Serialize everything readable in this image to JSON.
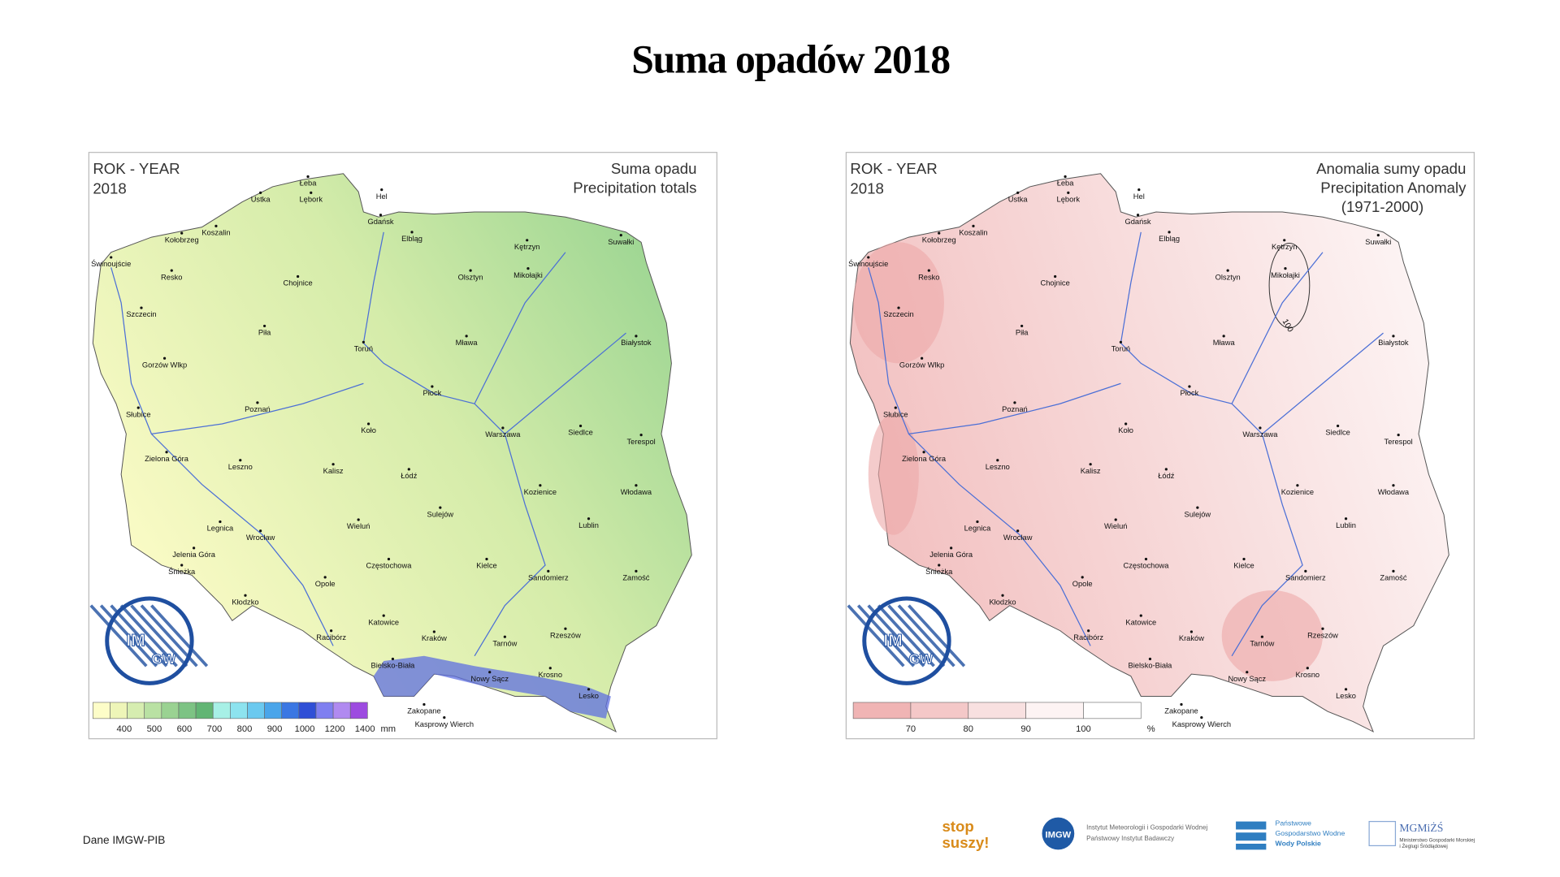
{
  "title": "Suma opadów 2018",
  "maps": [
    {
      "header_left": [
        "ROK - YEAR",
        "2018"
      ],
      "header_right": [
        "Suma opadu",
        "Precipitation totals"
      ],
      "fill": [
        "#8fd08d",
        "#d5ecaa",
        "#fbfbc6"
      ],
      "legend": {
        "colors": [
          "#fdfdc8",
          "#eef5b8",
          "#d6edb0",
          "#b9e1a3",
          "#9ad292",
          "#7dc384",
          "#62b574",
          "#a7f0e6",
          "#8de3ef",
          "#6bc9ef",
          "#4aa5ea",
          "#3a77e3",
          "#2f4fd6",
          "#7f7ff0",
          "#b08af0",
          "#9d4be0"
        ],
        "labels": [
          "400",
          "500",
          "600",
          "700",
          "800",
          "900",
          "1000",
          "1200",
          "1400"
        ],
        "unit": "mm"
      }
    },
    {
      "header_left": [
        "ROK - YEAR",
        "2018"
      ],
      "header_right": [
        "Anomalia sumy opadu",
        "Precipitation Anomaly",
        "(1971-2000)"
      ],
      "fill": [
        "#f2c0c0",
        "#f8dede",
        "#fdf6f6"
      ],
      "contour_label": "100",
      "legend": {
        "colors": [
          "#f0b4b4",
          "#f4c8c8",
          "#f8e0e0",
          "#fdf3f3",
          "#ffffff"
        ],
        "labels": [
          "70",
          "80",
          "90",
          "100"
        ],
        "unit": "%"
      }
    }
  ],
  "logo_text": [
    "IM",
    "GW"
  ],
  "cities": [
    "Hel",
    "Łeba",
    "Lębork",
    "Ustka",
    "Gdańsk",
    "Elbląg",
    "Kołobrzeg",
    "Koszalin",
    "Świnoujście",
    "Resko",
    "Chojnice",
    "Kętrzyn",
    "Suwałki",
    "Olsztyn",
    "Mikołajki",
    "Szczecin",
    "Piła",
    "Toruń",
    "Mława",
    "Białystok",
    "Gorzów Wlkp",
    "Płock",
    "Poznań",
    "Słubice",
    "Koło",
    "Warszawa",
    "Siedlce",
    "Terespol",
    "Zielona Góra",
    "Leszno",
    "Kalisz",
    "Łódź",
    "Kozienice",
    "Włodawa",
    "Sulejów",
    "Legnica",
    "Wrocław",
    "Wieluń",
    "Lublin",
    "Jelenia Góra",
    "Śnieżka",
    "Częstochowa",
    "Kielce",
    "Sandomierz",
    "Zamość",
    "Opole",
    "Kłodzko",
    "Katowice",
    "Racibórz",
    "Kraków",
    "Tarnów",
    "Rzeszów",
    "Bielsko-Biała",
    "Nowy Sącz",
    "Krosno",
    "Lesko",
    "Zakopane",
    "Kasprowy Wierch"
  ],
  "footer": {
    "source": "Dane IMGW-PIB",
    "logos": [
      "stop",
      "suszy!",
      "IMGW",
      "Instytut Meteorologii i Gospodarki Wodnej",
      "Państwowy Instytut Badawczy",
      "Państwowe",
      "Gospodarstwo Wodne",
      "Wody Polskie",
      "MGMiŻŚ",
      "Ministerstwo Gospodarki Morskiej",
      "i Żeglugi Śródlądowej"
    ]
  }
}
